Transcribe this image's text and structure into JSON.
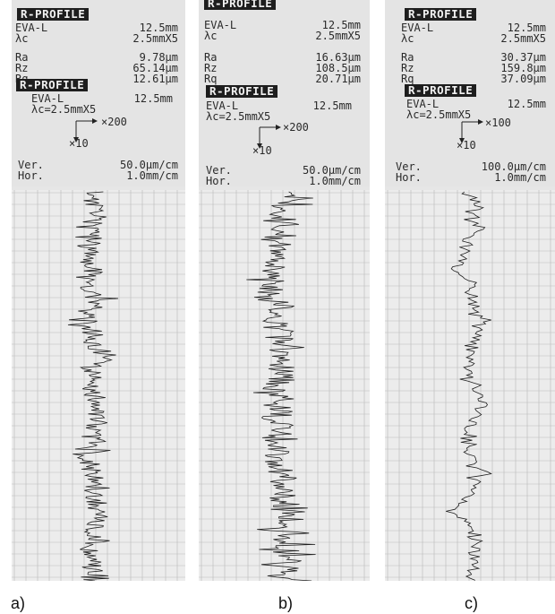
{
  "panels": [
    {
      "id": "a",
      "top_tag": "R-PROFILE",
      "eva": "EVA-L",
      "eva_len": "12.5mm",
      "lc": "λc",
      "lc_val": "2.5mmX5",
      "ra": "Ra",
      "ra_val": "9.78μm",
      "rz": "Rz",
      "rz_val": "65.14μm",
      "rq": "Rq",
      "rq_val": "12.61μm",
      "second_tag": "R-PROFILE",
      "eva2": "EVA-L",
      "eva2_len": "12.5mm",
      "lc2": "λc=2.5mmX5",
      "mag_x": "×200",
      "mag_y": "×10",
      "ver": "Ver.",
      "ver_val": "50.0μm/cm",
      "hor": "Hor.",
      "hor_val": "1.0mm/cm",
      "caption": "a)"
    },
    {
      "id": "b",
      "top_tag": "R-PROFILE",
      "eva": "EVA-L",
      "eva_len": "12.5mm",
      "lc": "λc",
      "lc_val": "2.5mmX5",
      "ra": "Ra",
      "ra_val": "16.63μm",
      "rz": "Rz",
      "rz_val": "108.5μm",
      "rq": "Rq",
      "rq_val": "20.71μm",
      "second_tag": "R-PROFILE",
      "eva2": "EVA-L",
      "eva2_len": "12.5mm",
      "lc2": "λc=2.5mmX5",
      "mag_x": "×200",
      "mag_y": "×10",
      "ver": "Ver.",
      "ver_val": "50.0μm/cm",
      "hor": "Hor.",
      "hor_val": "1.0mm/cm",
      "caption": "b)"
    },
    {
      "id": "c",
      "top_tag": "R-PROFILE",
      "eva": "EVA-L",
      "eva_len": "12.5mm",
      "lc": "λc",
      "lc_val": "2.5mmX5",
      "ra": "Ra",
      "ra_val": "30.37μm",
      "rz": "Rz",
      "rz_val": "159.8μm",
      "rq": "Rq",
      "rq_val": "37.09μm",
      "second_tag": "R-PROFILE",
      "eva2": "EVA-L",
      "eva2_len": "12.5mm",
      "lc2": "λc=2.5mmX5",
      "mag_x": "×100",
      "mag_y": "×10",
      "ver": "Ver.",
      "ver_val": "100.0μm/cm",
      "hor": "Hor.",
      "hor_val": "1.0mm/cm",
      "caption": "c)"
    }
  ],
  "colors": {
    "grid": "#b9b9b9",
    "trace": "#1f1f1f",
    "tag_bg": "#1e1e1e"
  }
}
